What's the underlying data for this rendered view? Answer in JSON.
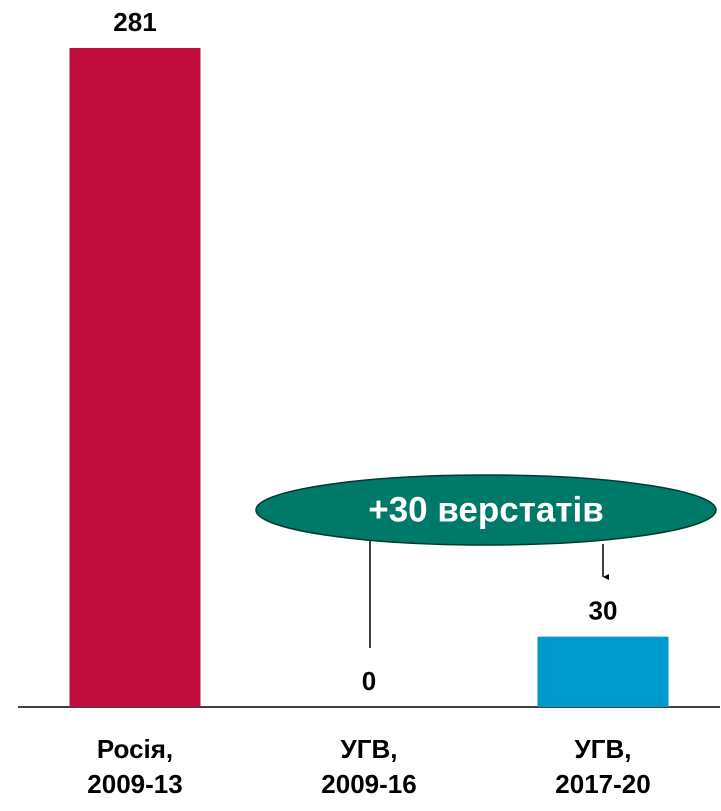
{
  "chart_data": {
    "type": "bar",
    "categories": [
      [
        "Росія,",
        "2009-13"
      ],
      [
        "УГВ,",
        "2009-16"
      ],
      [
        "УГВ,",
        "2017-20"
      ]
    ],
    "values": [
      281,
      0,
      30
    ],
    "colors": [
      "#c00d3d",
      "#c00d3d",
      "#0099cc"
    ],
    "ylim": [
      0,
      281
    ],
    "annotation": "+30 верстатів"
  }
}
